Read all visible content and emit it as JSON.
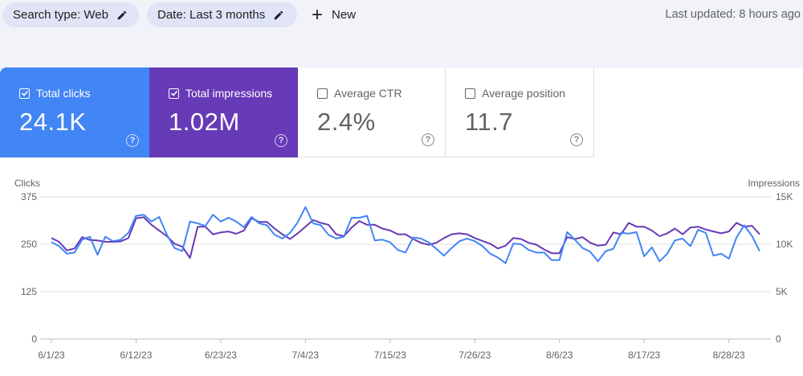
{
  "filters": {
    "search_type": "Search type: Web",
    "date": "Date: Last 3 months",
    "new_label": "New"
  },
  "last_updated": "Last updated: 8 hours ago",
  "metrics": {
    "clicks": {
      "label": "Total clicks",
      "value": "24.1K",
      "checked": true
    },
    "impressions": {
      "label": "Total impressions",
      "value": "1.02M",
      "checked": true
    },
    "ctr": {
      "label": "Average CTR",
      "value": "2.4%",
      "checked": false
    },
    "position": {
      "label": "Average position",
      "value": "11.7",
      "checked": false
    }
  },
  "colors": {
    "clicks": "#4285f4",
    "impressions": "#673ab7",
    "grid": "#e0e0e0"
  },
  "chart_data": {
    "type": "line",
    "left_axis_title": "Clicks",
    "right_axis_title": "Impressions",
    "left_ticks": [
      "0",
      "125",
      "250",
      "375"
    ],
    "right_ticks": [
      "0",
      "5K",
      "10K",
      "15K"
    ],
    "x_ticks": [
      "6/1/23",
      "6/12/23",
      "6/23/23",
      "7/4/23",
      "7/15/23",
      "7/26/23",
      "8/6/23",
      "8/17/23",
      "8/28/23"
    ],
    "ylim_left": [
      0,
      375
    ],
    "ylim_right": [
      0,
      15000
    ],
    "series": [
      {
        "name": "Total clicks",
        "axis": "left",
        "values": [
          256,
          245,
          225,
          228,
          262,
          270,
          222,
          270,
          258,
          262,
          280,
          325,
          328,
          310,
          322,
          275,
          240,
          232,
          310,
          305,
          298,
          328,
          310,
          320,
          310,
          295,
          322,
          305,
          300,
          275,
          265,
          280,
          308,
          348,
          305,
          300,
          275,
          265,
          270,
          320,
          320,
          325,
          260,
          262,
          255,
          235,
          228,
          268,
          265,
          255,
          238,
          220,
          240,
          258,
          265,
          258,
          245,
          225,
          215,
          200,
          252,
          250,
          235,
          228,
          228,
          208,
          208,
          282,
          262,
          240,
          230,
          205,
          232,
          238,
          280,
          278,
          282,
          218,
          242,
          205,
          225,
          260,
          265,
          245,
          288,
          280,
          220,
          225,
          212,
          268,
          300,
          272,
          232
        ],
        "x_start": "6/1/23"
      },
      {
        "name": "Total impressions",
        "axis": "right",
        "values": [
          10650,
          10250,
          9350,
          9550,
          10750,
          10450,
          10400,
          10250,
          10250,
          10300,
          10650,
          12750,
          12850,
          12050,
          11450,
          10850,
          10050,
          9750,
          8550,
          11850,
          11850,
          11050,
          11250,
          11350,
          11100,
          11450,
          12750,
          12350,
          12350,
          11650,
          11050,
          10550,
          11150,
          11850,
          12550,
          12250,
          12050,
          11050,
          10850,
          11750,
          12450,
          12050,
          12050,
          11650,
          11450,
          11050,
          11050,
          10550,
          10150,
          9950,
          10150,
          10650,
          11050,
          11150,
          11050,
          10650,
          10350,
          10050,
          9550,
          9850,
          10650,
          10550,
          10150,
          9950,
          9450,
          9050,
          9050,
          10750,
          10550,
          10750,
          10150,
          9850,
          9950,
          11250,
          11050,
          12250,
          11850,
          11850,
          11450,
          10850,
          11150,
          11650,
          11050,
          11750,
          11850,
          11550,
          11350,
          11150,
          11350,
          12250,
          11850,
          11950,
          11050
        ],
        "x_start": "6/1/23"
      }
    ]
  }
}
